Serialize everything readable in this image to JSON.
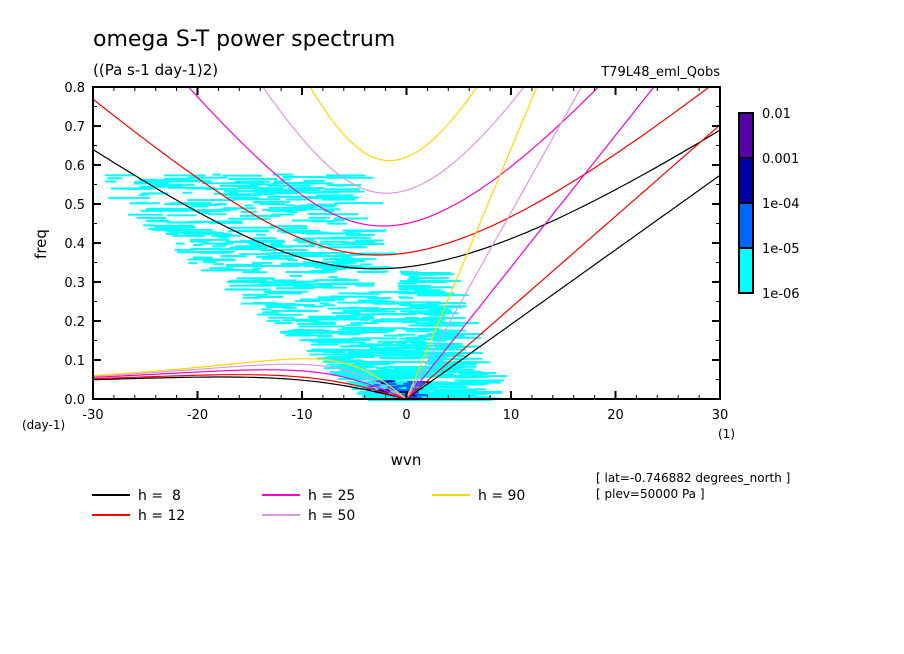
{
  "chart_data": {
    "type": "heatmap",
    "title": "omega S-T power spectrum",
    "subtitle": "((Pa s-1 day-1)2)",
    "dataset_label": "T79L48_eml_Qobs",
    "xlabel": "wvn",
    "xunits": "(1)",
    "ylabel": "freq",
    "yunits": "(day-1)",
    "xlim": [
      -30,
      30
    ],
    "ylim": [
      0.0,
      0.8
    ],
    "x_ticks": [
      -30,
      -20,
      -10,
      0,
      10,
      20,
      30
    ],
    "x_tick_labels": [
      "-30",
      "-20",
      "-10",
      "0",
      "10",
      "20",
      "30"
    ],
    "y_ticks": [
      0.0,
      0.1,
      0.2,
      0.3,
      0.4,
      0.5,
      0.6,
      0.7,
      0.8
    ],
    "y_tick_labels": [
      "0.0",
      "0.1",
      "0.2",
      "0.3",
      "0.4",
      "0.5",
      "0.6",
      "0.7",
      "0.8"
    ],
    "colorbar": {
      "levels": [
        "1e-06",
        "1e-05",
        "1e-04",
        "0.001",
        "0.01"
      ],
      "colors": [
        "#00ffff",
        "#0066ff",
        "#0000aa",
        "#5500aa"
      ]
    },
    "dispersion_curves": [
      {
        "label": "h =  8",
        "h": 8,
        "color": "#000000"
      },
      {
        "label": "h = 12",
        "h": 12,
        "color": "#ff0000"
      },
      {
        "label": "h = 25",
        "h": 25,
        "color": "#ff00cc"
      },
      {
        "label": "h = 50",
        "h": 50,
        "color": "#dd99dd"
      },
      {
        "label": "h = 90",
        "h": 90,
        "color": "#ffd700"
      }
    ],
    "power_regions": [
      {
        "level": "1e-06 to 1e-05",
        "description": "scattered cyan power from wvn -28 to +7, freq up to ~0.55, concentrated near wvn -5..0, freq < 0.3"
      },
      {
        "level": "1e-05 to 1e-04",
        "description": "small patches near wvn -3..0, freq < 0.06"
      }
    ],
    "annotations": [
      "[ lat=-0.746882 degrees_north ]",
      "[ plev=50000 Pa ]"
    ]
  }
}
